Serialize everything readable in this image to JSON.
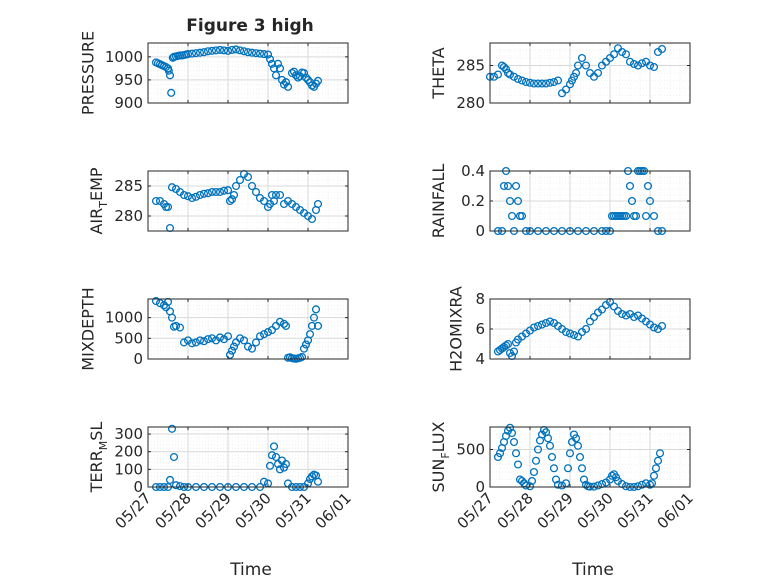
{
  "title": "Figure 3 high",
  "colors": {
    "marker": "#0072BD",
    "axis": "#262626",
    "grid": "#d9d9d9",
    "background": "#ffffff"
  },
  "x_tick_labels": [
    "05/27",
    "05/28",
    "05/29",
    "05/30",
    "05/31",
    "06/01"
  ],
  "x_label": "Time",
  "chart_data": [
    {
      "type": "scatter",
      "ylabel": "PRESSURE",
      "ylim": [
        900,
        1030
      ],
      "yticks": [
        900,
        950,
        1000
      ],
      "yticklabels": [
        "900",
        "950",
        "1000"
      ],
      "grid": true,
      "marker": "circle-open",
      "x": [
        0.2,
        0.25,
        0.3,
        0.35,
        0.4,
        0.45,
        0.5,
        0.52,
        0.55,
        0.58,
        0.62,
        0.65,
        0.7,
        0.75,
        0.8,
        0.85,
        0.9,
        0.95,
        1.0,
        1.1,
        1.2,
        1.3,
        1.4,
        1.5,
        1.6,
        1.7,
        1.8,
        1.9,
        2.0,
        2.1,
        2.2,
        2.3,
        2.4,
        2.5,
        2.6,
        2.7,
        2.8,
        2.9,
        3.0,
        3.05,
        3.1,
        3.15,
        3.2,
        3.25,
        3.3,
        3.35,
        3.4,
        3.45,
        3.5,
        3.6,
        3.65,
        3.7,
        3.75,
        3.8,
        3.85,
        3.9,
        3.95,
        4.0,
        4.05,
        4.1,
        4.15,
        4.2,
        4.25
      ],
      "y": [
        988,
        986,
        984,
        982,
        980,
        978,
        975,
        970,
        960,
        922,
        998,
        1000,
        1001,
        1002,
        1003,
        1003,
        1004,
        1005,
        1006,
        1007,
        1008,
        1009,
        1010,
        1012,
        1013,
        1014,
        1015,
        1014,
        1013,
        1015,
        1016,
        1014,
        1012,
        1010,
        1009,
        1008,
        1007,
        1006,
        1005,
        995,
        985,
        975,
        960,
        985,
        975,
        950,
        940,
        945,
        935,
        965,
        968,
        960,
        955,
        958,
        966,
        965,
        955,
        950,
        945,
        938,
        935,
        942,
        948
      ]
    },
    {
      "type": "scatter",
      "ylabel": "THETA",
      "ylim": [
        280,
        288
      ],
      "yticks": [
        280,
        285
      ],
      "yticklabels": [
        "280",
        "285"
      ],
      "grid": true,
      "marker": "circle-open",
      "x": [
        0.0,
        0.1,
        0.2,
        0.3,
        0.35,
        0.4,
        0.45,
        0.5,
        0.6,
        0.7,
        0.8,
        0.9,
        1.0,
        1.1,
        1.2,
        1.3,
        1.4,
        1.5,
        1.6,
        1.7,
        1.8,
        1.9,
        2.0,
        2.05,
        2.1,
        2.15,
        2.2,
        2.3,
        2.4,
        2.5,
        2.6,
        2.7,
        2.8,
        2.9,
        3.0,
        3.1,
        3.2,
        3.3,
        3.4,
        3.5,
        3.6,
        3.7,
        3.8,
        3.9,
        4.0,
        4.1,
        4.2,
        4.3
      ],
      "y": [
        283.5,
        283.5,
        283.8,
        285,
        284.8,
        284.5,
        284,
        283.8,
        283.5,
        283.2,
        283,
        282.8,
        282.7,
        282.6,
        282.6,
        282.6,
        282.6,
        282.7,
        282.8,
        283,
        281.3,
        281.8,
        282.5,
        283,
        283.5,
        284,
        285,
        286,
        285,
        284,
        283.5,
        284,
        285,
        285.5,
        286,
        286.5,
        287.3,
        286.8,
        286.5,
        285.5,
        285.2,
        285,
        285.3,
        285.5,
        285,
        284.8,
        286.8,
        287.2
      ]
    },
    {
      "type": "scatter",
      "ylabel": "AIR_TEMP",
      "ylim": [
        277.5,
        287.5
      ],
      "yticks": [
        280,
        285
      ],
      "yticklabels": [
        "280",
        "285"
      ],
      "grid": true,
      "marker": "circle-open",
      "x": [
        0.2,
        0.3,
        0.4,
        0.45,
        0.5,
        0.55,
        0.6,
        0.7,
        0.8,
        0.9,
        1.0,
        1.1,
        1.2,
        1.3,
        1.4,
        1.5,
        1.6,
        1.7,
        1.8,
        1.9,
        2.0,
        2.05,
        2.1,
        2.15,
        2.2,
        2.3,
        2.4,
        2.5,
        2.6,
        2.7,
        2.8,
        2.9,
        3.0,
        3.05,
        3.1,
        3.15,
        3.2,
        3.3,
        3.4,
        3.5,
        3.6,
        3.7,
        3.8,
        3.9,
        4.0,
        4.1,
        4.2,
        4.25
      ],
      "y": [
        282.5,
        282.5,
        282,
        281.5,
        281.5,
        278,
        284.8,
        284.5,
        284,
        283.5,
        283.3,
        283,
        283.2,
        283.5,
        283.7,
        283.8,
        284,
        284,
        284,
        284.2,
        284.3,
        282.5,
        282.8,
        283.5,
        285,
        286,
        287,
        286.5,
        285,
        284,
        283,
        282.5,
        281.5,
        282,
        283.5,
        282.5,
        283.5,
        283.5,
        282,
        282.5,
        282,
        281.5,
        281,
        280.5,
        280,
        279.5,
        281,
        282
      ]
    },
    {
      "type": "scatter",
      "ylabel": "RAINFALL",
      "ylim": [
        0,
        0.4
      ],
      "yticks": [
        0,
        0.2,
        0.4
      ],
      "yticklabels": [
        "0",
        "0.2",
        "0.4"
      ],
      "grid": true,
      "marker": "circle-open",
      "x": [
        0.2,
        0.3,
        0.35,
        0.4,
        0.45,
        0.5,
        0.55,
        0.6,
        0.65,
        0.7,
        0.75,
        0.8,
        0.9,
        1.0,
        1.2,
        1.4,
        1.6,
        1.8,
        2.0,
        2.2,
        2.4,
        2.6,
        2.8,
        2.9,
        3.0,
        3.05,
        3.1,
        3.15,
        3.2,
        3.25,
        3.3,
        3.35,
        3.4,
        3.45,
        3.5,
        3.55,
        3.6,
        3.65,
        3.7,
        3.75,
        3.8,
        3.85,
        3.9,
        3.95,
        4.0,
        4.1,
        4.2,
        4.3
      ],
      "y": [
        0,
        0,
        0.3,
        0.4,
        0.3,
        0.2,
        0.1,
        0,
        0.3,
        0.2,
        0.1,
        0.1,
        0,
        0,
        0,
        0,
        0,
        0,
        0,
        0,
        0,
        0,
        0,
        0,
        0,
        0.1,
        0.1,
        0.1,
        0.1,
        0.1,
        0.1,
        0.1,
        0.1,
        0.4,
        0.3,
        0.2,
        0.1,
        0.1,
        0.4,
        0.4,
        0.4,
        0.4,
        0.1,
        0.3,
        0.2,
        0.1,
        0,
        0
      ]
    },
    {
      "type": "scatter",
      "ylabel": "MIXDEPTH",
      "ylim": [
        0,
        1450
      ],
      "yticks": [
        0,
        500,
        1000
      ],
      "yticklabels": [
        "0",
        "500",
        "1000"
      ],
      "grid": true,
      "marker": "circle-open",
      "x": [
        0.2,
        0.3,
        0.4,
        0.45,
        0.5,
        0.55,
        0.6,
        0.65,
        0.7,
        0.8,
        0.9,
        1.0,
        1.1,
        1.2,
        1.3,
        1.4,
        1.5,
        1.6,
        1.7,
        1.8,
        1.9,
        2.0,
        2.05,
        2.1,
        2.15,
        2.2,
        2.3,
        2.4,
        2.5,
        2.6,
        2.7,
        2.8,
        2.9,
        3.0,
        3.1,
        3.2,
        3.3,
        3.4,
        3.45,
        3.5,
        3.55,
        3.6,
        3.65,
        3.7,
        3.75,
        3.8,
        3.85,
        3.9,
        3.95,
        4.0,
        4.05,
        4.1,
        4.15,
        4.2,
        4.25
      ],
      "y": [
        1400,
        1350,
        1300,
        1250,
        1380,
        1150,
        1000,
        780,
        800,
        760,
        400,
        450,
        380,
        400,
        450,
        430,
        480,
        500,
        450,
        520,
        480,
        550,
        100,
        200,
        300,
        400,
        500,
        450,
        300,
        250,
        400,
        550,
        600,
        650,
        700,
        800,
        900,
        850,
        800,
        30,
        40,
        20,
        10,
        5,
        15,
        30,
        50,
        250,
        350,
        450,
        600,
        800,
        1000,
        1200,
        800
      ]
    },
    {
      "type": "scatter",
      "ylabel": "H2OMIXRA",
      "ylim": [
        4,
        8
      ],
      "yticks": [
        4,
        6,
        8
      ],
      "yticklabels": [
        "4",
        "6",
        "8"
      ],
      "grid": true,
      "marker": "circle-open",
      "x": [
        0.2,
        0.25,
        0.3,
        0.35,
        0.4,
        0.45,
        0.5,
        0.55,
        0.6,
        0.65,
        0.7,
        0.8,
        0.9,
        1.0,
        1.1,
        1.2,
        1.3,
        1.4,
        1.5,
        1.6,
        1.7,
        1.8,
        1.9,
        2.0,
        2.1,
        2.2,
        2.3,
        2.4,
        2.5,
        2.6,
        2.7,
        2.8,
        2.9,
        3.0,
        3.1,
        3.2,
        3.3,
        3.4,
        3.5,
        3.6,
        3.7,
        3.8,
        3.9,
        4.0,
        4.1,
        4.2,
        4.3
      ],
      "y": [
        4.5,
        4.6,
        4.7,
        4.8,
        4.9,
        5,
        4.4,
        4.2,
        4.5,
        5.1,
        5.3,
        5.5,
        5.7,
        5.9,
        6.1,
        6.2,
        6.3,
        6.4,
        6.5,
        6.4,
        6.2,
        6,
        5.8,
        5.7,
        5.6,
        5.5,
        5.8,
        6,
        6.5,
        6.8,
        7.1,
        7.3,
        7.6,
        7.8,
        7.5,
        7.2,
        7,
        6.9,
        7,
        6.8,
        6.9,
        6.7,
        6.5,
        6.3,
        6.1,
        6,
        6.2
      ]
    },
    {
      "type": "scatter",
      "ylabel": "TERR_MSL",
      "ylim": [
        0,
        340
      ],
      "yticks": [
        0,
        100,
        200,
        300
      ],
      "yticklabels": [
        "0",
        "100",
        "200",
        "300"
      ],
      "grid": true,
      "marker": "circle-open",
      "x": [
        0.2,
        0.3,
        0.4,
        0.5,
        0.55,
        0.6,
        0.65,
        0.7,
        0.8,
        0.9,
        1.0,
        1.2,
        1.4,
        1.6,
        1.8,
        2.0,
        2.2,
        2.4,
        2.6,
        2.8,
        2.9,
        3.0,
        3.05,
        3.1,
        3.15,
        3.2,
        3.25,
        3.3,
        3.35,
        3.4,
        3.45,
        3.5,
        3.6,
        3.7,
        3.8,
        3.9,
        4.0,
        4.05,
        4.1,
        4.15,
        4.2,
        4.25
      ],
      "y": [
        0,
        0,
        0,
        0,
        40,
        330,
        170,
        10,
        5,
        0,
        0,
        0,
        0,
        0,
        0,
        0,
        0,
        0,
        0,
        0,
        30,
        20,
        120,
        180,
        230,
        170,
        130,
        100,
        150,
        110,
        130,
        20,
        0,
        0,
        0,
        0,
        20,
        45,
        60,
        70,
        65,
        30
      ]
    },
    {
      "type": "scatter",
      "ylabel": "SUN_FLUX",
      "ylim": [
        0,
        800
      ],
      "yticks": [
        0,
        500
      ],
      "yticklabels": [
        "0",
        "500"
      ],
      "grid": true,
      "marker": "circle-open",
      "x": [
        0.2,
        0.25,
        0.3,
        0.35,
        0.4,
        0.45,
        0.5,
        0.55,
        0.6,
        0.65,
        0.7,
        0.75,
        0.8,
        0.85,
        0.9,
        1.0,
        1.05,
        1.1,
        1.15,
        1.2,
        1.25,
        1.3,
        1.35,
        1.4,
        1.45,
        1.5,
        1.55,
        1.6,
        1.65,
        1.7,
        1.8,
        1.9,
        1.95,
        2.0,
        2.05,
        2.1,
        2.15,
        2.2,
        2.25,
        2.3,
        2.35,
        2.4,
        2.45,
        2.5,
        2.6,
        2.7,
        2.8,
        2.9,
        3.0,
        3.05,
        3.1,
        3.15,
        3.2,
        3.3,
        3.4,
        3.5,
        3.6,
        3.7,
        3.8,
        3.9,
        4.0,
        4.05,
        4.1,
        4.15,
        4.2,
        4.25
      ],
      "y": [
        400,
        450,
        520,
        600,
        680,
        750,
        790,
        720,
        600,
        450,
        300,
        100,
        80,
        50,
        20,
        10,
        80,
        200,
        350,
        500,
        620,
        700,
        760,
        730,
        650,
        550,
        400,
        250,
        100,
        30,
        20,
        50,
        250,
        450,
        600,
        700,
        650,
        550,
        400,
        250,
        100,
        30,
        10,
        5,
        5,
        20,
        40,
        60,
        100,
        150,
        170,
        130,
        80,
        40,
        10,
        0,
        0,
        10,
        30,
        50,
        30,
        50,
        150,
        250,
        350,
        450
      ]
    }
  ]
}
